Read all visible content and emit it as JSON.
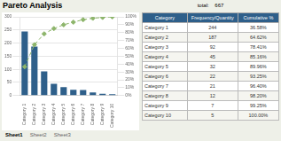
{
  "chart_data": {
    "type": "bar",
    "title": "Pareto Analysis",
    "categories": [
      "Category 1",
      "Category 2",
      "Category 3",
      "Category 4",
      "Category 5",
      "Category 6",
      "Category 7",
      "Category 8",
      "Category 9",
      "Category 10"
    ],
    "series": [
      {
        "name": "Frequency/Quantity",
        "type": "bar",
        "color": "#2E5F8A",
        "values": [
          244,
          187,
          92,
          45,
          32,
          22,
          21,
          12,
          7,
          5
        ]
      },
      {
        "name": "Cumulative %",
        "type": "line",
        "axis": "y2",
        "color": "#8DB56B",
        "marker": "diamond",
        "line_style": "dashed",
        "values": [
          36.58,
          64.62,
          78.41,
          85.16,
          89.96,
          93.25,
          96.4,
          98.2,
          99.25,
          100.0
        ],
        "value_labels": [
          "36.58%",
          "64.62%",
          "78.41%",
          "85.16%",
          "89.96%",
          "93.25%",
          "96.40%",
          "98.20%",
          "99.25%",
          "100.00%"
        ]
      }
    ],
    "ylim": [
      0,
      300
    ],
    "yticks": [
      0,
      50,
      100,
      150,
      200,
      250,
      300
    ],
    "y2lim": [
      0,
      100
    ],
    "y2ticks": [
      {
        "value": 0,
        "label": "0%"
      },
      {
        "value": 10,
        "label": "10%"
      },
      {
        "value": 20,
        "label": "20%"
      },
      {
        "value": 30,
        "label": "30%"
      },
      {
        "value": 40,
        "label": "40%"
      },
      {
        "value": 50,
        "label": "50%"
      },
      {
        "value": 60,
        "label": "60%"
      },
      {
        "value": 70,
        "label": "70%"
      },
      {
        "value": 80,
        "label": "80%"
      },
      {
        "value": 90,
        "label": "90%"
      },
      {
        "value": 100,
        "label": "100%"
      }
    ],
    "grid": true,
    "annotations": [
      {
        "text": "total:    667"
      }
    ],
    "table": {
      "columns": [
        "Category",
        "Frequency/Quantity",
        "Cumulative %"
      ]
    },
    "sheet_tabs": [
      "Sheet1",
      "Sheet2",
      "Sheet3"
    ],
    "active_tab": "Sheet1"
  }
}
